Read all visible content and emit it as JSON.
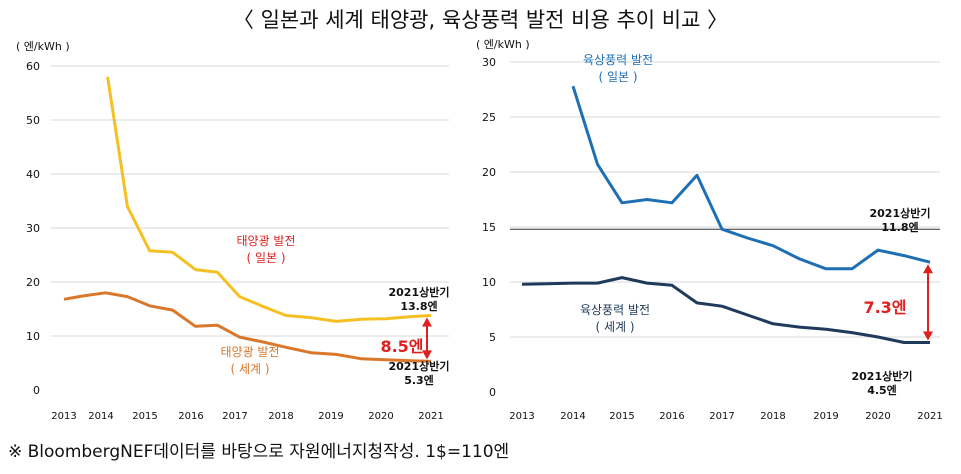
{
  "title": "〈 일본과 세계 태양광, 육상풍력 발전 비용 추이 비교 〉",
  "footnote": "※ BloombergNEF데이터를 바탕으로 자원에너지청작성. 1$=110엔",
  "colors": {
    "solar_japan": "#f5c024",
    "solar_world": "#d9782a",
    "wind_japan": "#1f6fb5",
    "wind_world": "#1f3a5a",
    "highlight": "#e02020",
    "grid": "#d9d9d9"
  },
  "chart_data": [
    {
      "type": "line",
      "unit_label": "( 엔/kWh )",
      "x_ticks": [
        "2013",
        "2014",
        "2015",
        "2016",
        "2017",
        "2018",
        "2019",
        "2020",
        "2021"
      ],
      "ylim": [
        0,
        60
      ],
      "y_ticks": [
        0,
        10,
        20,
        30,
        40,
        50,
        60
      ],
      "grid": true,
      "series": [
        {
          "name_lines": [
            "태양광 발전",
            "( 일본 )"
          ],
          "color_key": "solar_japan",
          "x": [
            2014.15,
            2014.6,
            2015.1,
            2015.6,
            2016.1,
            2016.6,
            2017.1,
            2017.6,
            2018.1,
            2018.6,
            2019.1,
            2019.6,
            2020.1,
            2020.6,
            2021.0
          ],
          "y": [
            58,
            34,
            25.8,
            25.5,
            22.3,
            21.8,
            17.3,
            15.5,
            13.8,
            13.4,
            12.7,
            13.1,
            13.2,
            13.6,
            13.8
          ]
        },
        {
          "name_lines": [
            "태양광 발전",
            "( 세계 )"
          ],
          "color_key": "solar_world",
          "x": [
            2013.0,
            2013.5,
            2014.1,
            2014.6,
            2015.1,
            2015.6,
            2016.1,
            2016.6,
            2017.1,
            2017.6,
            2018.1,
            2018.6,
            2019.1,
            2019.6,
            2020.1,
            2020.6,
            2021.0
          ],
          "y": [
            16.8,
            17.4,
            18.0,
            17.3,
            15.6,
            14.8,
            11.8,
            12.0,
            9.8,
            8.9,
            7.9,
            6.9,
            6.6,
            5.8,
            5.6,
            5.4,
            5.3
          ]
        }
      ],
      "annotations": {
        "japan_end": [
          "2021상반기",
          "13.8엔"
        ],
        "world_end": [
          "2021상반기",
          "5.3엔"
        ],
        "gap": "8.5엔",
        "gap_values": [
          13.8,
          5.3
        ]
      }
    },
    {
      "type": "line",
      "unit_label": "( 엔/kWh )",
      "x_ticks": [
        "2013",
        "2014",
        "2015",
        "2016",
        "2017",
        "2018",
        "2019",
        "2020",
        "2021"
      ],
      "ylim": [
        0,
        30
      ],
      "y_ticks": [
        0,
        5,
        10,
        15,
        20,
        25,
        30
      ],
      "grid": true,
      "reference_value": 14.8,
      "series": [
        {
          "name_lines": [
            "육상풍력 발전",
            "( 일본 )"
          ],
          "color_key": "wind_japan",
          "x": [
            2014.0,
            2014.5,
            2015.0,
            2015.5,
            2016.0,
            2016.5,
            2017.0,
            2017.5,
            2018.0,
            2018.5,
            2019.0,
            2019.5,
            2020.0,
            2020.5,
            2021.0
          ],
          "y": [
            27.8,
            20.7,
            17.2,
            17.5,
            17.2,
            19.7,
            14.8,
            14.0,
            13.3,
            12.1,
            11.2,
            11.2,
            12.9,
            12.4,
            11.8
          ]
        },
        {
          "name_lines": [
            "육상풍력 발전",
            "( 세계 )"
          ],
          "color_key": "wind_world",
          "x": [
            2013.0,
            2013.5,
            2014.0,
            2014.5,
            2015.0,
            2015.5,
            2016.0,
            2016.5,
            2017.0,
            2017.5,
            2018.0,
            2018.5,
            2019.0,
            2019.5,
            2020.0,
            2020.5,
            2021.0
          ],
          "y": [
            9.8,
            9.85,
            9.9,
            9.9,
            10.4,
            9.9,
            9.7,
            8.1,
            7.8,
            7.0,
            6.2,
            5.9,
            5.7,
            5.4,
            5.0,
            4.5,
            4.5
          ]
        }
      ],
      "annotations": {
        "japan_end": [
          "2021상반기",
          "11.8엔"
        ],
        "world_end": [
          "2021상반기",
          "4.5엔"
        ],
        "gap": "7.3엔",
        "gap_values": [
          11.8,
          4.5
        ]
      }
    }
  ]
}
